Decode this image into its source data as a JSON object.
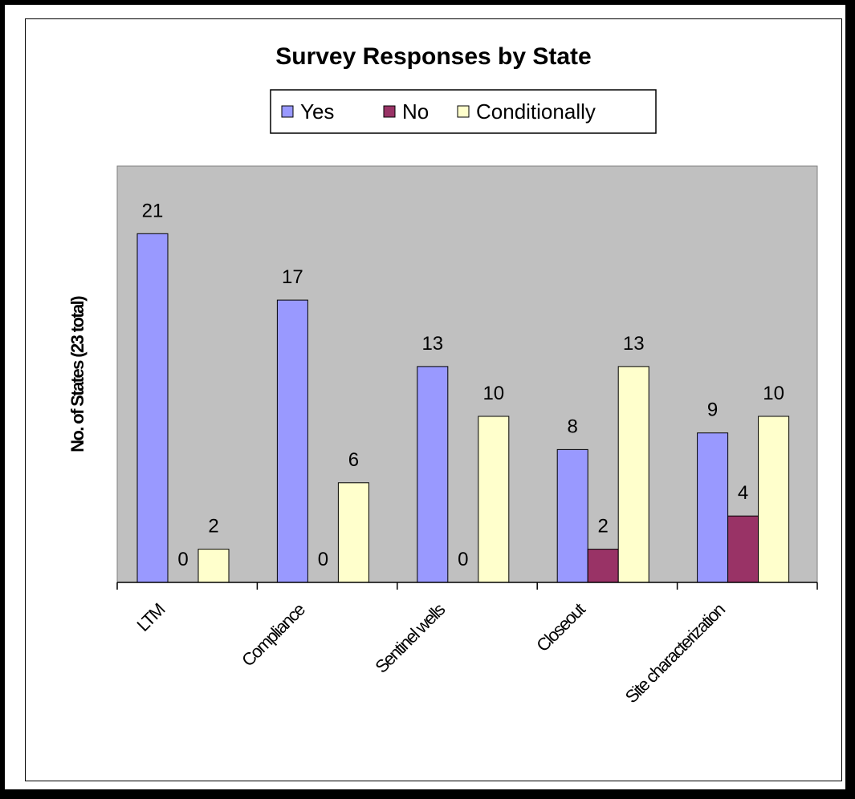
{
  "chart_data": {
    "type": "bar",
    "title": "Survey Responses by State",
    "xlabel": "",
    "ylabel": "No. of States (23 total)",
    "categories": [
      "LTM",
      "Compliance",
      "Sentinel wells",
      "Closeout",
      "Site characterization"
    ],
    "series": [
      {
        "name": "Yes",
        "values": [
          21,
          17,
          13,
          8,
          9
        ],
        "color": "#9999ff"
      },
      {
        "name": "No",
        "values": [
          0,
          0,
          0,
          2,
          4
        ],
        "color": "#993366"
      },
      {
        "name": "Conditionally",
        "values": [
          2,
          6,
          10,
          13,
          10
        ],
        "color": "#ffffcc"
      }
    ],
    "ylim": [
      0,
      23
    ],
    "grid": false,
    "legend_position": "top",
    "plot_background": "#c0c0c0",
    "data_labels": true
  }
}
